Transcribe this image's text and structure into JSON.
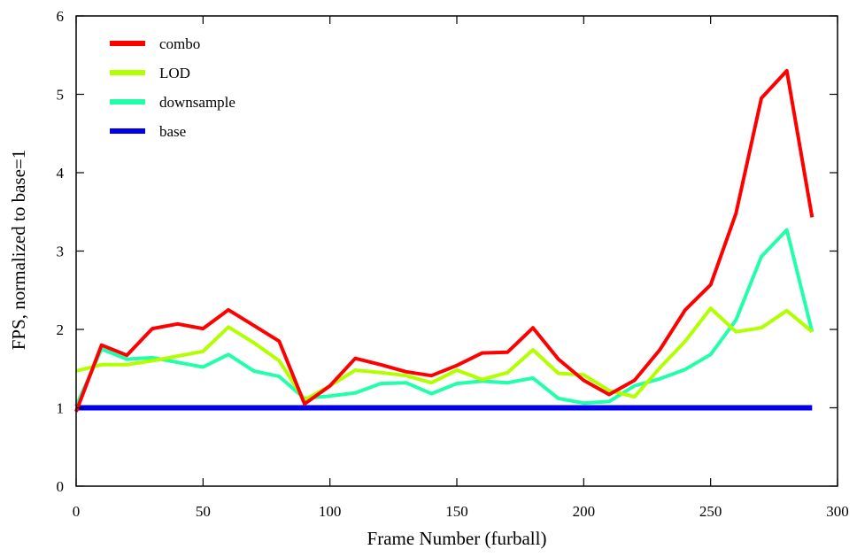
{
  "chart_data": {
    "type": "line",
    "xlabel": "Frame Number (furball)",
    "ylabel": "FPS, normalized to base=1",
    "xlim": [
      0,
      300
    ],
    "ylim": [
      0,
      6
    ],
    "xticks": [
      0,
      50,
      100,
      150,
      200,
      250,
      300
    ],
    "yticks": [
      0,
      1,
      2,
      3,
      4,
      5,
      6
    ],
    "x_tick_labels": [
      "0",
      "50",
      "100",
      "150",
      "200",
      "250",
      "300"
    ],
    "y_tick_labels": [
      "0",
      "1",
      "2",
      "3",
      "4",
      "5",
      "6"
    ],
    "grid": false,
    "legend_position": "top-left",
    "x": [
      0,
      10,
      20,
      30,
      40,
      50,
      60,
      70,
      80,
      90,
      100,
      110,
      120,
      130,
      140,
      150,
      160,
      170,
      180,
      190,
      200,
      210,
      220,
      230,
      240,
      250,
      260,
      270,
      280,
      290
    ],
    "series": [
      {
        "name": "combo",
        "color": "#ff0000",
        "values": [
          0.95,
          1.8,
          1.67,
          2.01,
          2.07,
          2.01,
          2.25,
          2.05,
          1.85,
          1.05,
          1.28,
          1.63,
          1.55,
          1.46,
          1.41,
          1.54,
          1.7,
          1.71,
          2.02,
          1.62,
          1.35,
          1.17,
          1.35,
          1.74,
          2.25,
          2.57,
          3.48,
          4.95,
          5.3,
          3.43
        ]
      },
      {
        "name": "LOD",
        "color": "#b2ff00",
        "values": [
          1.47,
          1.55,
          1.55,
          1.6,
          1.66,
          1.72,
          2.03,
          1.83,
          1.6,
          1.1,
          1.28,
          1.48,
          1.45,
          1.41,
          1.32,
          1.48,
          1.36,
          1.45,
          1.74,
          1.44,
          1.42,
          1.22,
          1.14,
          1.51,
          1.85,
          2.27,
          1.97,
          2.02,
          2.24,
          1.97
        ]
      },
      {
        "name": "downsample",
        "color": "#22ffaa",
        "values": [
          1.02,
          1.75,
          1.62,
          1.64,
          1.58,
          1.52,
          1.68,
          1.47,
          1.4,
          1.12,
          1.15,
          1.19,
          1.31,
          1.32,
          1.18,
          1.31,
          1.34,
          1.32,
          1.38,
          1.12,
          1.06,
          1.08,
          1.28,
          1.37,
          1.49,
          1.68,
          2.12,
          2.93,
          3.27,
          1.97
        ]
      },
      {
        "name": "base",
        "color": "#0000ee",
        "values": [
          1,
          1,
          1,
          1,
          1,
          1,
          1,
          1,
          1,
          1,
          1,
          1,
          1,
          1,
          1,
          1,
          1,
          1,
          1,
          1,
          1,
          1,
          1,
          1,
          1,
          1,
          1,
          1,
          1,
          1
        ]
      }
    ]
  }
}
